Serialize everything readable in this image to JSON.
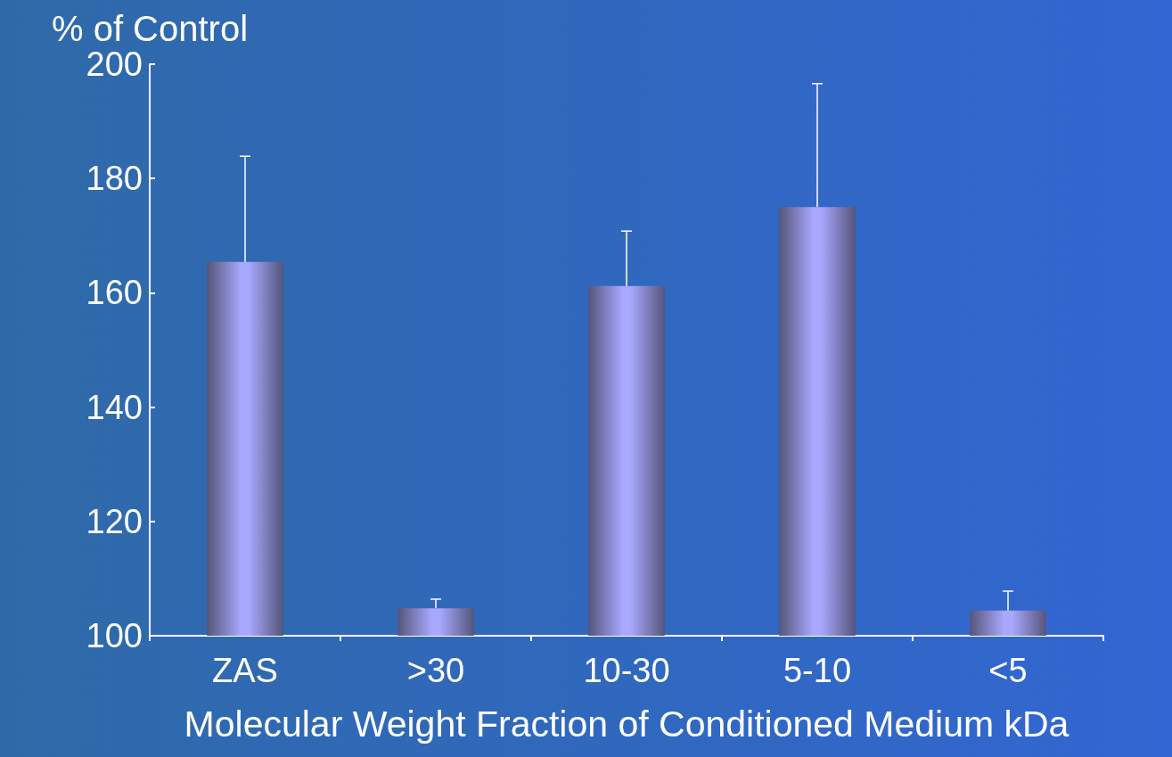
{
  "chart_data": {
    "type": "bar",
    "ylabel": "% of Control",
    "xlabel": "Molecular Weight Fraction of Conditioned Medium kDa",
    "categories": [
      "ZAS",
      ">30",
      "10-30",
      "5-10",
      "<5"
    ],
    "values": [
      165.4,
      104.8,
      161.2,
      175.0,
      104.4
    ],
    "errors": [
      [
        165.4,
        183.9
      ],
      [
        104.8,
        106.4
      ],
      [
        161.2,
        170.8
      ],
      [
        175.0,
        196.6
      ],
      [
        104.4,
        107.8
      ]
    ],
    "color": "#a8a8ff",
    "ylim": [
      100,
      200
    ],
    "yticks": [
      100,
      120,
      140,
      160,
      180,
      200
    ],
    "grid": false
  }
}
